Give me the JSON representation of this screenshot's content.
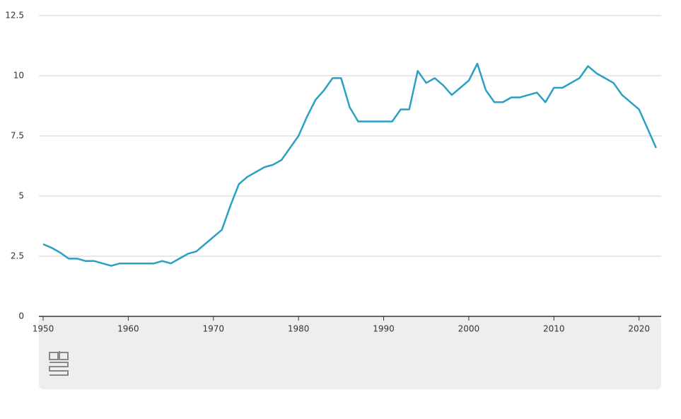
{
  "chart_data": {
    "type": "line",
    "x": [
      1950,
      1951,
      1952,
      1953,
      1954,
      1955,
      1956,
      1957,
      1958,
      1959,
      1960,
      1961,
      1962,
      1963,
      1964,
      1965,
      1966,
      1967,
      1968,
      1969,
      1970,
      1971,
      1972,
      1973,
      1974,
      1975,
      1976,
      1977,
      1978,
      1979,
      1980,
      1981,
      1982,
      1983,
      1984,
      1985,
      1986,
      1987,
      1988,
      1989,
      1990,
      1991,
      1992,
      1993,
      1994,
      1995,
      1996,
      1997,
      1998,
      1999,
      2000,
      2001,
      2002,
      2003,
      2004,
      2005,
      2006,
      2007,
      2008,
      2009,
      2010,
      2011,
      2012,
      2013,
      2014,
      2015,
      2016,
      2017,
      2018,
      2019,
      2020,
      2021,
      2022
    ],
    "series": [
      {
        "color": "#2aa1c2",
        "values": [
          3.0,
          2.85,
          2.65,
          2.4,
          2.4,
          2.3,
          2.3,
          2.2,
          2.1,
          2.2,
          2.2,
          2.2,
          2.2,
          2.2,
          2.3,
          2.2,
          2.4,
          2.6,
          2.7,
          3.0,
          3.3,
          3.6,
          4.6,
          5.5,
          5.8,
          6.0,
          6.2,
          6.3,
          6.5,
          7.0,
          7.5,
          8.3,
          9.0,
          9.4,
          9.9,
          9.9,
          8.7,
          8.1,
          8.1,
          8.1,
          8.1,
          8.1,
          8.6,
          8.6,
          10.2,
          9.7,
          9.9,
          9.6,
          9.2,
          9.5,
          9.8,
          10.5,
          9.4,
          8.9,
          8.9,
          9.1,
          9.1,
          9.2,
          9.3,
          8.9,
          9.5,
          9.5,
          9.7,
          9.9,
          10.4,
          10.1,
          9.9,
          9.7,
          9.2,
          8.9,
          8.6,
          7.8,
          7.0
        ]
      }
    ],
    "xlim": [
      1950,
      2022.6
    ],
    "xticks": [
      1950,
      1960,
      1970,
      1980,
      1990,
      2000,
      2010,
      2020
    ],
    "ylim": [
      0,
      12.5
    ],
    "yticks": [
      0,
      2.5,
      5,
      7.5,
      10,
      12.5
    ],
    "grid": true
  }
}
